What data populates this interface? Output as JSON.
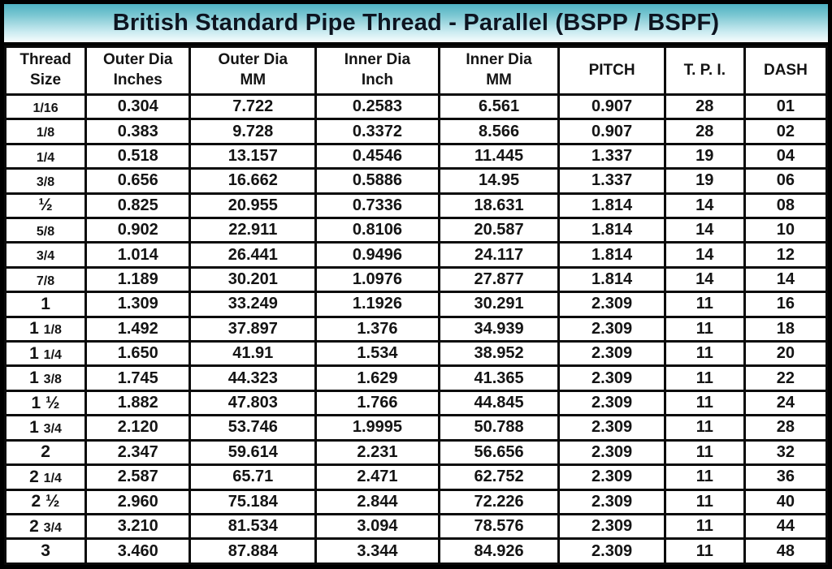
{
  "title": "British Standard Pipe Thread - Parallel (BSPP / BSPF)",
  "colors": {
    "title_gradient_top": "#4fb2c3",
    "title_gradient_bottom": "#f7fdfe",
    "grid_line": "#0a0a0a",
    "text": "#141414",
    "background": "#ffffff"
  },
  "table": {
    "columns": [
      "Thread\nSize",
      "Outer Dia\nInches",
      "Outer Dia\nMM",
      "Inner Dia\nInch",
      "Inner Dia\nMM",
      "PITCH",
      "T. P. I.",
      "DASH"
    ],
    "col_widths_pct": [
      9.8,
      12.7,
      15.3,
      15.0,
      14.6,
      12.9,
      9.7,
      10.0
    ],
    "rows": [
      [
        "1/16",
        "0.304",
        "7.722",
        "0.2583",
        "6.561",
        "0.907",
        "28",
        "01"
      ],
      [
        "1/8",
        "0.383",
        "9.728",
        "0.3372",
        "8.566",
        "0.907",
        "28",
        "02"
      ],
      [
        "1/4",
        "0.518",
        "13.157",
        "0.4546",
        "11.445",
        "1.337",
        "19",
        "04"
      ],
      [
        "3/8",
        "0.656",
        "16.662",
        "0.5886",
        "14.95",
        "1.337",
        "19",
        "06"
      ],
      [
        "½",
        "0.825",
        "20.955",
        "0.7336",
        "18.631",
        "1.814",
        "14",
        "08"
      ],
      [
        "5/8",
        "0.902",
        "22.911",
        "0.8106",
        "20.587",
        "1.814",
        "14",
        "10"
      ],
      [
        "3/4",
        "1.014",
        "26.441",
        "0.9496",
        "24.117",
        "1.814",
        "14",
        "12"
      ],
      [
        "7/8",
        "1.189",
        "30.201",
        "1.0976",
        "27.877",
        "1.814",
        "14",
        "14"
      ],
      [
        "1",
        "1.309",
        "33.249",
        "1.1926",
        "30.291",
        "2.309",
        "11",
        "16"
      ],
      [
        "1 1/8",
        "1.492",
        "37.897",
        "1.376",
        "34.939",
        "2.309",
        "11",
        "18"
      ],
      [
        "1 1/4",
        "1.650",
        "41.91",
        "1.534",
        "38.952",
        "2.309",
        "11",
        "20"
      ],
      [
        "1 3/8",
        "1.745",
        "44.323",
        "1.629",
        "41.365",
        "2.309",
        "11",
        "22"
      ],
      [
        "1 ½",
        "1.882",
        "47.803",
        "1.766",
        "44.845",
        "2.309",
        "11",
        "24"
      ],
      [
        "1 3/4",
        "2.120",
        "53.746",
        "1.9995",
        "50.788",
        "2.309",
        "11",
        "28"
      ],
      [
        "2",
        "2.347",
        "59.614",
        "2.231",
        "56.656",
        "2.309",
        "11",
        "32"
      ],
      [
        "2 1/4",
        "2.587",
        "65.71",
        "2.471",
        "62.752",
        "2.309",
        "11",
        "36"
      ],
      [
        "2 ½",
        "2.960",
        "75.184",
        "2.844",
        "72.226",
        "2.309",
        "11",
        "40"
      ],
      [
        "2 3/4",
        "3.210",
        "81.534",
        "3.094",
        "78.576",
        "2.309",
        "11",
        "44"
      ],
      [
        "3",
        "3.460",
        "87.884",
        "3.344",
        "84.926",
        "2.309",
        "11",
        "48"
      ]
    ]
  },
  "chart_data": {
    "type": "table",
    "title": "British Standard Pipe Thread - Parallel (BSPP / BSPF)",
    "columns": [
      "Thread Size",
      "Outer Dia Inches",
      "Outer Dia MM",
      "Inner Dia Inch",
      "Inner Dia MM",
      "PITCH",
      "T. P. I.",
      "DASH"
    ],
    "rows": [
      [
        "1/16",
        "0.304",
        "7.722",
        "0.2583",
        "6.561",
        "0.907",
        "28",
        "01"
      ],
      [
        "1/8",
        "0.383",
        "9.728",
        "0.3372",
        "8.566",
        "0.907",
        "28",
        "02"
      ],
      [
        "1/4",
        "0.518",
        "13.157",
        "0.4546",
        "11.445",
        "1.337",
        "19",
        "04"
      ],
      [
        "3/8",
        "0.656",
        "16.662",
        "0.5886",
        "14.95",
        "1.337",
        "19",
        "06"
      ],
      [
        "½",
        "0.825",
        "20.955",
        "0.7336",
        "18.631",
        "1.814",
        "14",
        "08"
      ],
      [
        "5/8",
        "0.902",
        "22.911",
        "0.8106",
        "20.587",
        "1.814",
        "14",
        "10"
      ],
      [
        "3/4",
        "1.014",
        "26.441",
        "0.9496",
        "24.117",
        "1.814",
        "14",
        "12"
      ],
      [
        "7/8",
        "1.189",
        "30.201",
        "1.0976",
        "27.877",
        "1.814",
        "14",
        "14"
      ],
      [
        "1",
        "1.309",
        "33.249",
        "1.1926",
        "30.291",
        "2.309",
        "11",
        "16"
      ],
      [
        "1 1/8",
        "1.492",
        "37.897",
        "1.376",
        "34.939",
        "2.309",
        "11",
        "18"
      ],
      [
        "1 1/4",
        "1.650",
        "41.91",
        "1.534",
        "38.952",
        "2.309",
        "11",
        "20"
      ],
      [
        "1 3/8",
        "1.745",
        "44.323",
        "1.629",
        "41.365",
        "2.309",
        "11",
        "22"
      ],
      [
        "1 ½",
        "1.882",
        "47.803",
        "1.766",
        "44.845",
        "2.309",
        "11",
        "24"
      ],
      [
        "1 3/4",
        "2.120",
        "53.746",
        "1.9995",
        "50.788",
        "2.309",
        "11",
        "28"
      ],
      [
        "2",
        "2.347",
        "59.614",
        "2.231",
        "56.656",
        "2.309",
        "11",
        "32"
      ],
      [
        "2 1/4",
        "2.587",
        "65.71",
        "2.471",
        "62.752",
        "2.309",
        "11",
        "36"
      ],
      [
        "2 ½",
        "2.960",
        "75.184",
        "2.844",
        "72.226",
        "2.309",
        "11",
        "40"
      ],
      [
        "2 3/4",
        "3.210",
        "81.534",
        "3.094",
        "78.576",
        "2.309",
        "11",
        "44"
      ],
      [
        "3",
        "3.460",
        "87.884",
        "3.344",
        "84.926",
        "2.309",
        "11",
        "48"
      ]
    ]
  }
}
